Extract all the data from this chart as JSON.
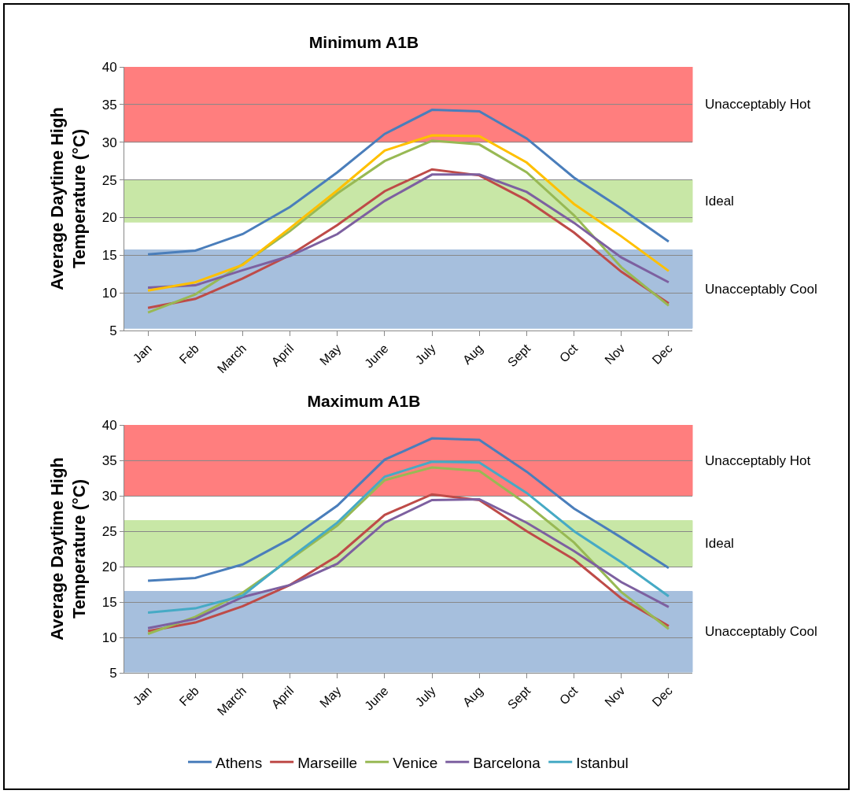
{
  "chart_data": [
    {
      "type": "line",
      "title": "Minimum A1B",
      "ylabel": "Average Daytime High Temperature (°C)",
      "categories": [
        "Jan",
        "Feb",
        "March",
        "April",
        "May",
        "June",
        "July",
        "Aug",
        "Sept",
        "Oct",
        "Nov",
        "Dec"
      ],
      "ylim": [
        5,
        40
      ],
      "yticks": [
        5,
        10,
        15,
        20,
        25,
        30,
        35,
        40
      ],
      "grid": "y",
      "legend": false,
      "marker": "none",
      "line_style": "solid",
      "series": [
        {
          "color": "#4a7ebb",
          "values": [
            15.1,
            15.6,
            17.8,
            21.4,
            26.0,
            31.1,
            34.3,
            34.1,
            30.5,
            25.3,
            21.2,
            16.8
          ]
        },
        {
          "color": "#be4b48",
          "values": [
            8.0,
            9.2,
            11.9,
            15.0,
            19.0,
            23.5,
            26.4,
            25.6,
            22.3,
            18.0,
            12.8,
            8.6
          ]
        },
        {
          "color": "#98b954",
          "values": [
            7.4,
            9.8,
            13.8,
            18.2,
            23.2,
            27.5,
            30.2,
            29.7,
            26.0,
            20.3,
            13.4,
            8.3
          ]
        },
        {
          "color": "#7d60a0",
          "values": [
            10.7,
            11.0,
            13.0,
            14.9,
            17.8,
            22.2,
            25.7,
            25.7,
            23.4,
            19.3,
            14.7,
            11.4
          ]
        },
        {
          "color": "#ffc000",
          "values": [
            10.3,
            11.4,
            13.7,
            18.6,
            23.6,
            28.9,
            30.9,
            30.8,
            27.3,
            21.8,
            17.5,
            12.9
          ]
        }
      ],
      "bands": [
        {
          "axis": "y",
          "from": 30,
          "to": 40,
          "label": "Unacceptably Hot",
          "color": "#ff0000"
        },
        {
          "axis": "y",
          "from": 19.4,
          "to": 25,
          "label": "Ideal",
          "color": "#92d050"
        },
        {
          "axis": "y",
          "from": 5.3,
          "to": 15.7,
          "label": "Unacceptably Cool",
          "color": "#4f81bd"
        }
      ]
    },
    {
      "type": "line",
      "title": "Maximum A1B",
      "ylabel": "Average Daytime High Temperature (°C)",
      "categories": [
        "Jan",
        "Feb",
        "March",
        "April",
        "May",
        "June",
        "July",
        "Aug",
        "Sept",
        "Oct",
        "Nov",
        "Dec"
      ],
      "ylim": [
        5,
        40
      ],
      "yticks": [
        5,
        10,
        15,
        20,
        25,
        30,
        35,
        40
      ],
      "grid": "y",
      "legend": "bottom",
      "marker": "none",
      "line_style": "solid",
      "series": [
        {
          "name": "Athens",
          "color": "#4a7ebb",
          "values": [
            18.0,
            18.4,
            20.3,
            23.9,
            28.6,
            35.1,
            38.1,
            37.9,
            33.4,
            28.2,
            24.1,
            19.8
          ]
        },
        {
          "name": "Marseille",
          "color": "#be4b48",
          "values": [
            10.9,
            12.1,
            14.4,
            17.4,
            21.5,
            27.3,
            30.2,
            29.4,
            25.0,
            21.0,
            15.5,
            11.6
          ]
        },
        {
          "name": "Venice",
          "color": "#98b954",
          "values": [
            10.5,
            12.9,
            16.3,
            21.0,
            25.8,
            32.2,
            34.0,
            33.5,
            28.8,
            23.4,
            16.4,
            11.2
          ]
        },
        {
          "name": "Barcelona",
          "color": "#7d60a0",
          "values": [
            11.3,
            12.6,
            15.7,
            17.4,
            20.4,
            26.2,
            29.4,
            29.5,
            26.2,
            22.2,
            17.8,
            14.3
          ]
        },
        {
          "name": "Istanbul",
          "color": "#46aac5",
          "values": [
            13.5,
            14.1,
            15.9,
            21.2,
            26.2,
            32.7,
            34.8,
            34.7,
            30.4,
            25.0,
            20.6,
            15.8
          ]
        }
      ],
      "bands": [
        {
          "axis": "y",
          "from": 30,
          "to": 40,
          "label": "Unacceptably Hot",
          "color": "#ff0000"
        },
        {
          "axis": "y",
          "from": 20,
          "to": 26.5,
          "label": "Ideal",
          "color": "#92d050"
        },
        {
          "axis": "y",
          "from": 5.1,
          "to": 16.5,
          "label": "Unacceptably Cool",
          "color": "#4f81bd"
        }
      ]
    }
  ]
}
